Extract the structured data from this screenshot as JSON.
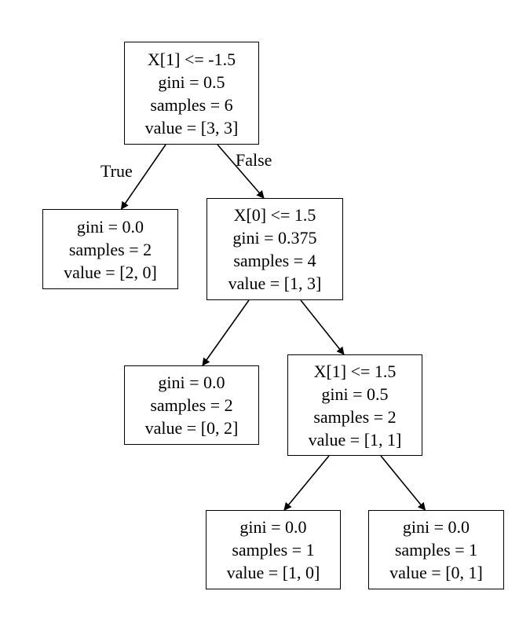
{
  "nodes": {
    "n0": {
      "lines": [
        "X[1] <= -1.5",
        "gini = 0.5",
        "samples = 6",
        "value = [3, 3]"
      ]
    },
    "n1": {
      "lines": [
        "gini = 0.0",
        "samples = 2",
        "value = [2, 0]"
      ]
    },
    "n2": {
      "lines": [
        "X[0] <= 1.5",
        "gini = 0.375",
        "samples = 4",
        "value = [1, 3]"
      ]
    },
    "n3": {
      "lines": [
        "gini = 0.0",
        "samples = 2",
        "value = [0, 2]"
      ]
    },
    "n4": {
      "lines": [
        "X[1] <= 1.5",
        "gini = 0.5",
        "samples = 2",
        "value = [1, 1]"
      ]
    },
    "n5": {
      "lines": [
        "gini = 0.0",
        "samples = 1",
        "value = [1, 0]"
      ]
    },
    "n6": {
      "lines": [
        "gini = 0.0",
        "samples = 1",
        "value = [0, 1]"
      ]
    }
  },
  "edges": [
    {
      "from": "n0",
      "to": "n1"
    },
    {
      "from": "n0",
      "to": "n2"
    },
    {
      "from": "n2",
      "to": "n3"
    },
    {
      "from": "n2",
      "to": "n4"
    },
    {
      "from": "n4",
      "to": "n5"
    },
    {
      "from": "n4",
      "to": "n6"
    }
  ],
  "edge_labels": {
    "true_label": "True",
    "false_label": "False"
  }
}
